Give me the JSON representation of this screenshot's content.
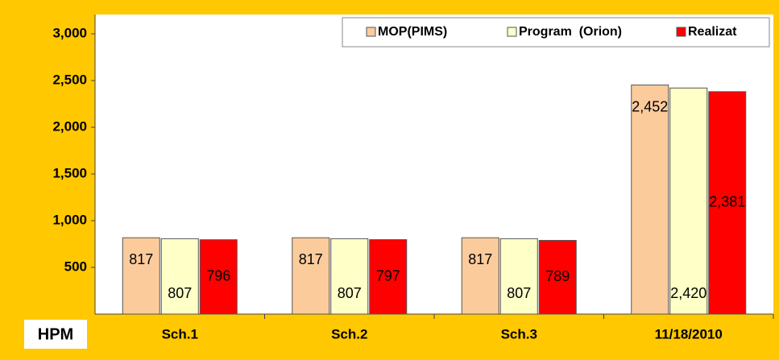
{
  "chart_data": {
    "type": "bar",
    "y_label": "HPM",
    "categories": [
      "Sch.1",
      "Sch.2",
      "Sch.3",
      "11/18/2010"
    ],
    "series": [
      {
        "name": "MOP(PIMS)",
        "color": "#fccb9c",
        "values": [
          817,
          817,
          817,
          2452
        ],
        "value_labels": [
          "817",
          "817",
          "817",
          "2,452"
        ]
      },
      {
        "name": "Program  (Orion)",
        "color": "#ffffc8",
        "values": [
          807,
          807,
          807,
          2420
        ],
        "value_labels": [
          "807",
          "807",
          "807",
          "2,420"
        ]
      },
      {
        "name": "Realizat",
        "color": "#ff0000",
        "values": [
          796,
          797,
          789,
          2381
        ],
        "value_labels": [
          "796",
          "797",
          "789",
          "2,381"
        ]
      }
    ],
    "ylim": [
      0,
      3000
    ],
    "yticks": [
      {
        "value": 500,
        "label": "500"
      },
      {
        "value": 1000,
        "label": "1,000"
      },
      {
        "value": 1500,
        "label": "1,500"
      },
      {
        "value": 2000,
        "label": "2,000"
      },
      {
        "value": 2500,
        "label": "2,500"
      },
      {
        "value": 3000,
        "label": "3,000"
      }
    ],
    "legend": "top-right"
  }
}
